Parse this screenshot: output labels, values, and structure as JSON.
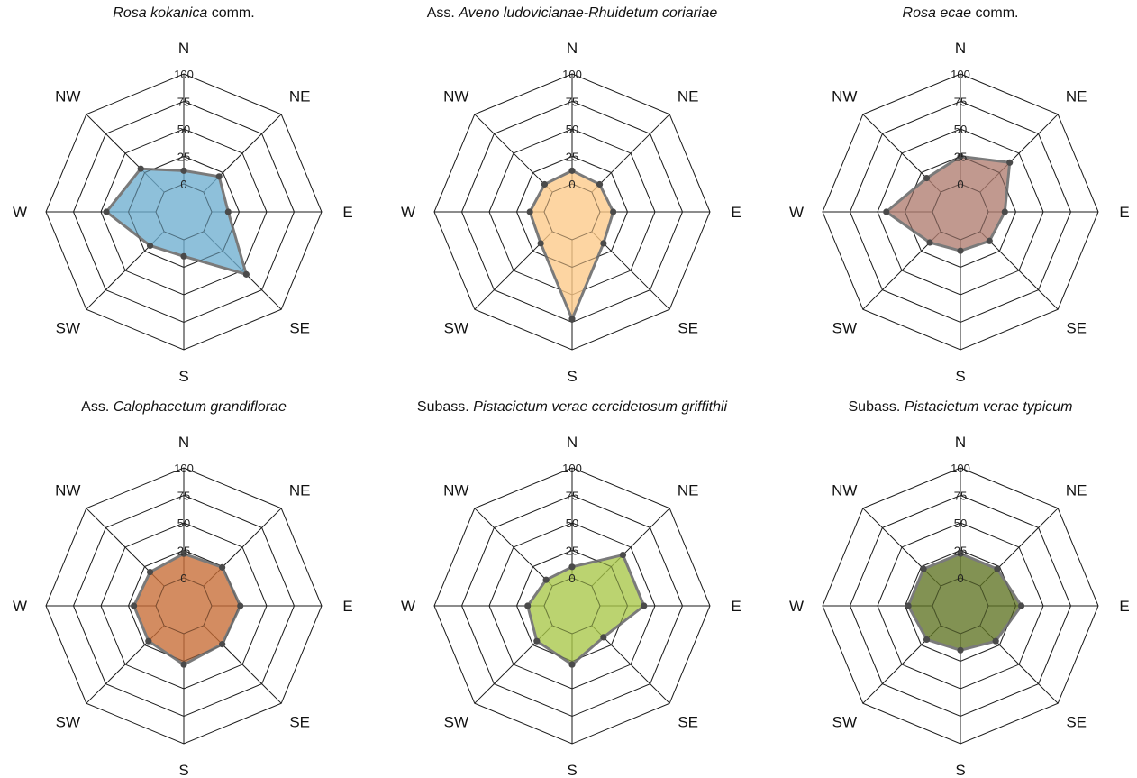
{
  "chart_data": [
    {
      "type": "radar",
      "title_prefix": "",
      "title_italic": "Rosa kokanica",
      "title_suffix": " comm.",
      "categories": [
        "N",
        "NE",
        "E",
        "SE",
        "S",
        "SW",
        "W",
        "NW"
      ],
      "values": [
        12,
        20,
        15,
        55,
        15,
        18,
        45,
        30
      ],
      "rlim": [
        0,
        100
      ],
      "rticks": [
        0,
        25,
        50,
        75,
        100
      ],
      "color": "#6eaed0"
    },
    {
      "type": "radar",
      "title_prefix": "Ass. ",
      "title_italic": "Aveno ludovicianae-Rhuidetum coriariae",
      "title_suffix": "",
      "categories": [
        "N",
        "NE",
        "E",
        "SE",
        "S",
        "SW",
        "W",
        "NW"
      ],
      "values": [
        12,
        10,
        12,
        15,
        72,
        15,
        13,
        10
      ],
      "rlim": [
        0,
        100
      ],
      "rticks": [
        0,
        25,
        50,
        75,
        100
      ],
      "color": "#fdc988"
    },
    {
      "type": "radar",
      "title_prefix": "",
      "title_italic": "Rosa ecae",
      "title_suffix": " comm.",
      "categories": [
        "N",
        "NE",
        "E",
        "SE",
        "S",
        "SW",
        "W",
        "NW"
      ],
      "values": [
        25,
        38,
        15,
        12,
        10,
        14,
        42,
        18
      ],
      "rlim": [
        0,
        100
      ],
      "rticks": [
        0,
        25,
        50,
        75,
        100
      ],
      "color": "#b07c6f"
    },
    {
      "type": "radar",
      "title_prefix": "Ass. ",
      "title_italic": "Calophacetum grandiflorae",
      "title_suffix": "",
      "categories": [
        "N",
        "NE",
        "E",
        "SE",
        "S",
        "SW",
        "W",
        "NW"
      ],
      "values": [
        22,
        24,
        26,
        24,
        28,
        20,
        20,
        18
      ],
      "rlim": [
        0,
        100
      ],
      "rticks": [
        0,
        25,
        50,
        75,
        100
      ],
      "color": "#c66c34"
    },
    {
      "type": "radar",
      "title_prefix": "Subass. ",
      "title_italic": "Pistacietum verae cercidetosum griffithii",
      "title_suffix": "",
      "categories": [
        "N",
        "NE",
        "E",
        "SE",
        "S",
        "SW",
        "W",
        "NW"
      ],
      "values": [
        10,
        40,
        40,
        15,
        28,
        20,
        15,
        8
      ],
      "rlim": [
        0,
        100
      ],
      "rticks": [
        0,
        25,
        50,
        75,
        100
      ],
      "color": "#a8c648"
    },
    {
      "type": "radar",
      "title_prefix": "Subass. ",
      "title_italic": "Pistacietum verae typicum",
      "title_suffix": "",
      "categories": [
        "N",
        "NE",
        "E",
        "SE",
        "S",
        "SW",
        "W",
        "NW"
      ],
      "values": [
        22,
        22,
        30,
        20,
        15,
        18,
        22,
        22
      ],
      "rlim": [
        0,
        100
      ],
      "rticks": [
        0,
        25,
        50,
        75,
        100
      ],
      "color": "#5f7322"
    }
  ]
}
